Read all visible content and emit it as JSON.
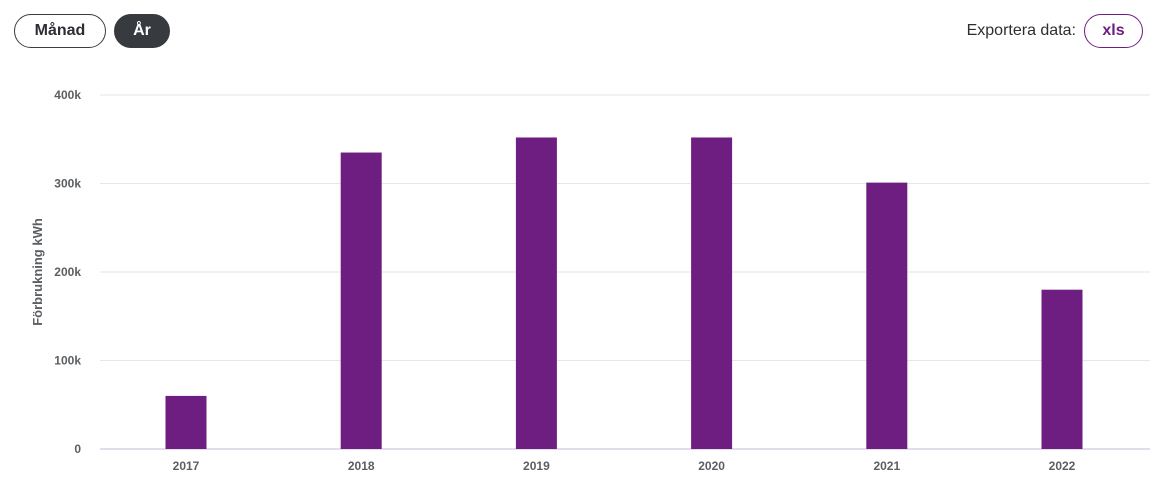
{
  "controls": {
    "period_month": "Månad",
    "period_year": "År",
    "export_label": "Exportera data:",
    "export_xls": "xls"
  },
  "colors": {
    "bar": "#6e1e80",
    "active_toggle": "#373a3e",
    "grid": "#e6e6ea",
    "baseline": "#d9d0e6"
  },
  "chart_data": {
    "type": "bar",
    "categories": [
      "2017",
      "2018",
      "2019",
      "2020",
      "2021",
      "2022"
    ],
    "values": [
      60000,
      335000,
      352000,
      352000,
      301000,
      180000
    ],
    "title": "",
    "xlabel": "",
    "ylabel": "Förbrukning kWh",
    "ylim": [
      0,
      400000
    ],
    "yticks": [
      {
        "value": 0,
        "label": "0"
      },
      {
        "value": 100000,
        "label": "100k"
      },
      {
        "value": 200000,
        "label": "200k"
      },
      {
        "value": 300000,
        "label": "300k"
      },
      {
        "value": 400000,
        "label": "400k"
      }
    ],
    "grid": true,
    "legend": "none"
  }
}
